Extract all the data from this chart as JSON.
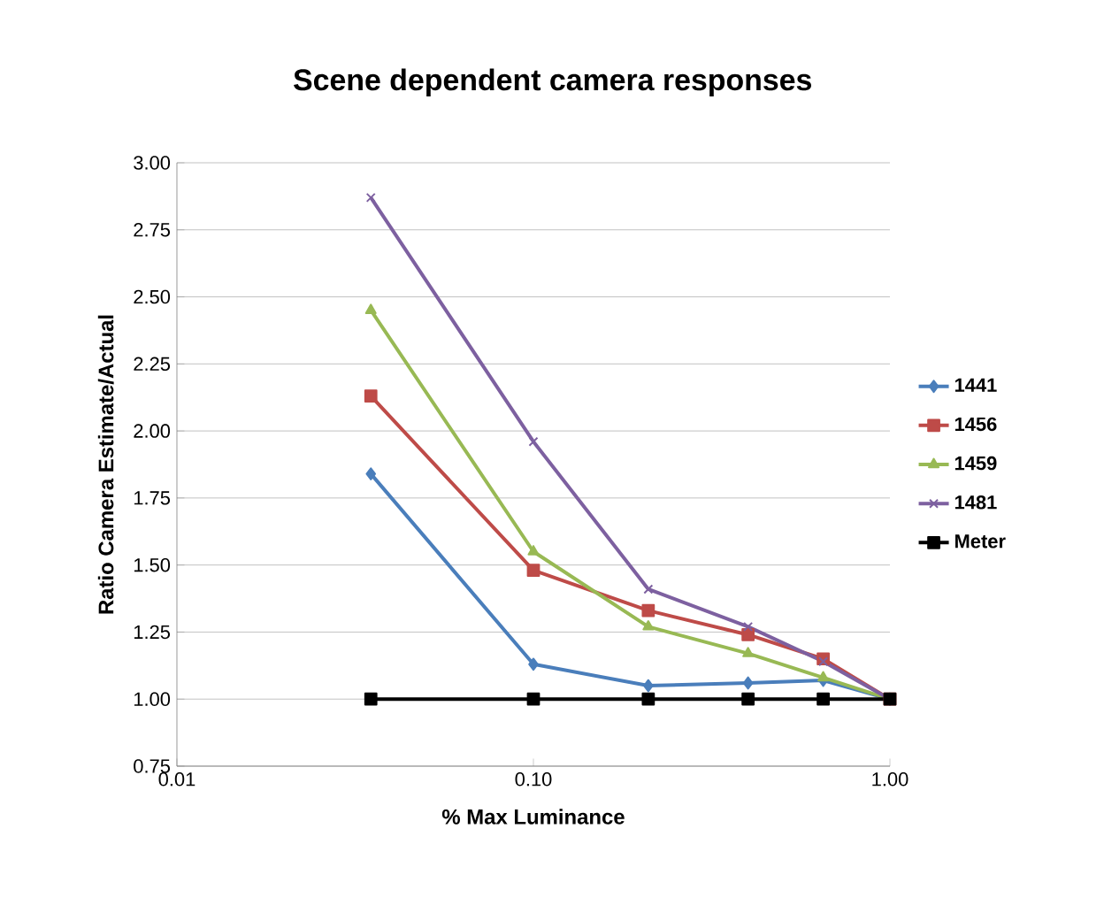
{
  "chart_data": {
    "type": "line",
    "title": "Scene dependent camera responses",
    "xlabel": "%  Max Luminance",
    "ylabel": "Ratio Camera Estimate/Actual",
    "x": [
      0.035,
      0.1,
      0.21,
      0.4,
      0.65,
      1.0
    ],
    "series": [
      {
        "name": "1441",
        "color": "#4a7ebb",
        "marker": "diamond",
        "values": [
          1.84,
          1.13,
          1.05,
          1.06,
          1.07,
          1.0
        ]
      },
      {
        "name": "1456",
        "color": "#be4b48",
        "marker": "square",
        "values": [
          2.13,
          1.48,
          1.33,
          1.24,
          1.15,
          1.0
        ]
      },
      {
        "name": "1459",
        "color": "#98b954",
        "marker": "triangle",
        "values": [
          2.45,
          1.55,
          1.27,
          1.17,
          1.08,
          1.0
        ]
      },
      {
        "name": "1481",
        "color": "#7d60a0",
        "marker": "cross",
        "values": [
          2.87,
          1.96,
          1.41,
          1.27,
          1.14,
          1.0
        ]
      },
      {
        "name": "Meter",
        "color": "#000000",
        "marker": "square",
        "values": [
          1.0,
          1.0,
          1.0,
          1.0,
          1.0,
          1.0
        ]
      }
    ],
    "log": "x",
    "xlim": [
      0.01,
      1.0
    ],
    "xticks": [
      {
        "value": 0.01,
        "label": "0.01"
      },
      {
        "value": 0.1,
        "label": "0.10"
      },
      {
        "value": 1.0,
        "label": "1.00"
      }
    ],
    "ylim": [
      0.75,
      3.0
    ],
    "yticks": [
      {
        "value": 0.75,
        "label": "0.75"
      },
      {
        "value": 1.0,
        "label": "1.00"
      },
      {
        "value": 1.25,
        "label": "1.25"
      },
      {
        "value": 1.5,
        "label": "1.50"
      },
      {
        "value": 1.75,
        "label": "1.75"
      },
      {
        "value": 2.0,
        "label": "2.00"
      },
      {
        "value": 2.25,
        "label": "2.25"
      },
      {
        "value": 2.5,
        "label": "2.50"
      },
      {
        "value": 2.75,
        "label": "2.75"
      },
      {
        "value": 3.0,
        "label": "3.00"
      }
    ],
    "grid": "y",
    "legend": "right",
    "line_style": "solid"
  }
}
